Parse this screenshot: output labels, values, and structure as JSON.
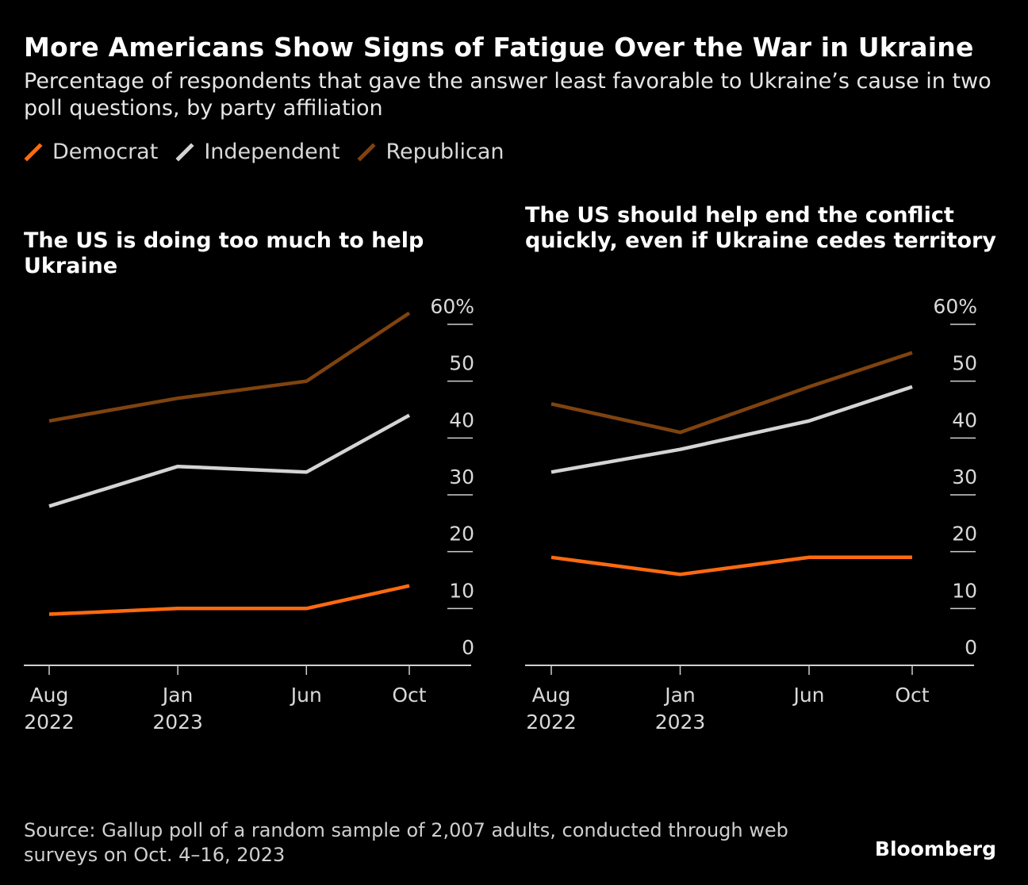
{
  "title": "More Americans Show Signs of Fatigue Over the War in Ukraine",
  "subtitle": "Percentage of respondents that gave the answer least favorable to Ukraine’s cause in two poll questions, by party affiliation",
  "legend": [
    {
      "name": "Democrat",
      "color": "#ff6a10"
    },
    {
      "name": "Independent",
      "color": "#d4d4d4"
    },
    {
      "name": "Republican",
      "color": "#7f4310"
    }
  ],
  "source": "Source: Gallup poll of a random sample of 2,007 adults, conducted through web surveys on Oct. 4–16, 2023",
  "brand": "Bloomberg",
  "chart_data": [
    {
      "type": "line",
      "title": "The US is doing too much to help Ukraine",
      "x": [
        "Aug 2022",
        "Jan 2023",
        "Jun 2023",
        "Oct 2023"
      ],
      "x_months": [
        0,
        5,
        10,
        14
      ],
      "x_tick_labels": [
        [
          "Aug",
          "2022"
        ],
        [
          "Jan",
          "2023"
        ],
        [
          "Jun",
          ""
        ],
        [
          "Oct",
          ""
        ]
      ],
      "y_ticks": [
        "0",
        "10",
        "20",
        "30",
        "40",
        "50",
        "60%"
      ],
      "ylim": [
        0,
        60
      ],
      "grid": false,
      "legend": "top-left",
      "series": [
        {
          "name": "Democrat",
          "values": [
            9,
            10,
            10,
            14
          ]
        },
        {
          "name": "Independent",
          "values": [
            28,
            35,
            34,
            44
          ]
        },
        {
          "name": "Republican",
          "values": [
            43,
            47,
            50,
            62
          ]
        }
      ]
    },
    {
      "type": "line",
      "title": "The US should help end the conflict quickly, even if Ukraine cedes territory",
      "x": [
        "Aug 2022",
        "Jan 2023",
        "Jun 2023",
        "Oct 2023"
      ],
      "x_months": [
        0,
        5,
        10,
        14
      ],
      "x_tick_labels": [
        [
          "Aug",
          "2022"
        ],
        [
          "Jan",
          "2023"
        ],
        [
          "Jun",
          ""
        ],
        [
          "Oct",
          ""
        ]
      ],
      "y_ticks": [
        "0",
        "10",
        "20",
        "30",
        "40",
        "50",
        "60%"
      ],
      "ylim": [
        0,
        60
      ],
      "grid": false,
      "legend": "top-left",
      "series": [
        {
          "name": "Democrat",
          "values": [
            19,
            16,
            19,
            19
          ]
        },
        {
          "name": "Independent",
          "values": [
            34,
            38,
            43,
            49
          ]
        },
        {
          "name": "Republican",
          "values": [
            46,
            41,
            49,
            55
          ]
        }
      ]
    }
  ]
}
